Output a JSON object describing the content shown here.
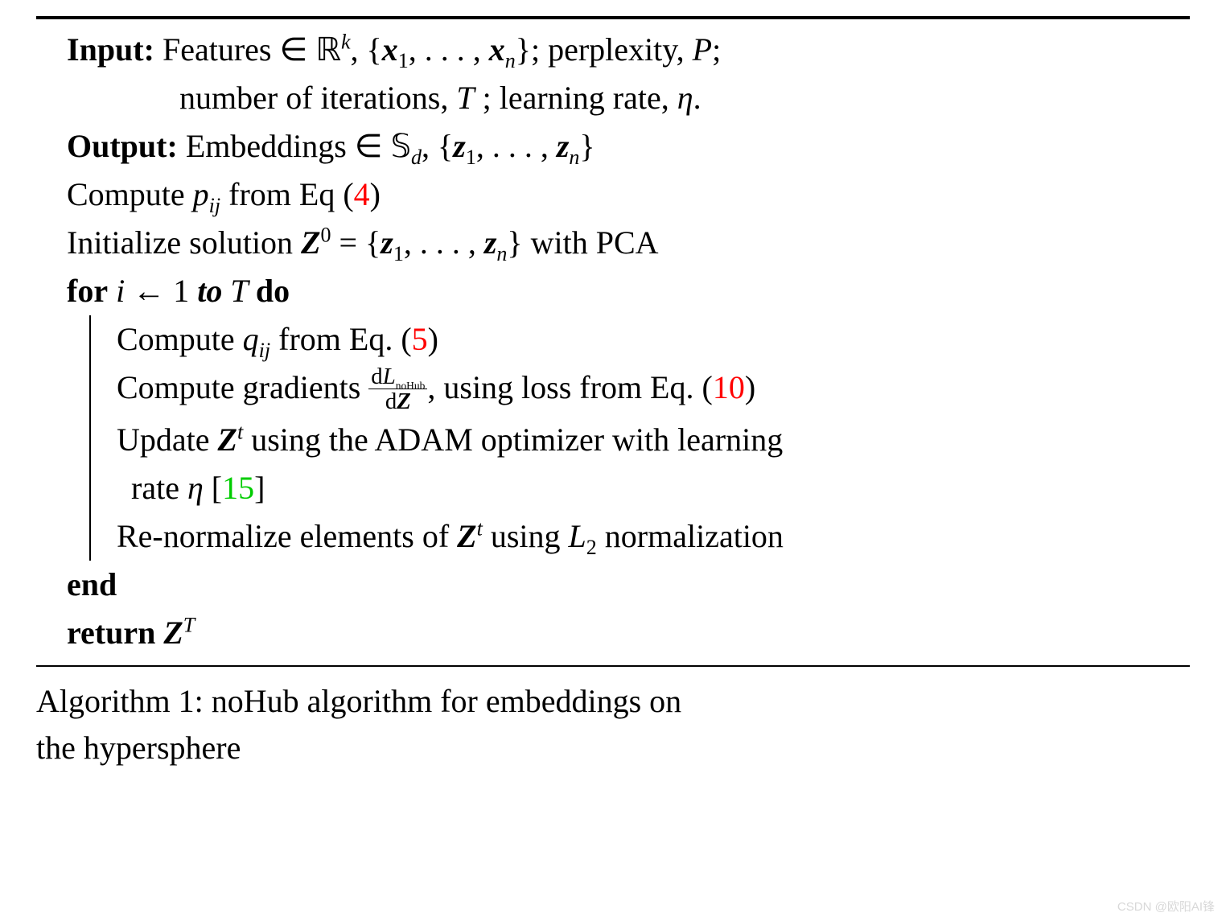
{
  "colors": {
    "ref_red": "#ff0000",
    "ref_green": "#00cc00",
    "text": "#000000",
    "bg": "#ffffff",
    "watermark": "#d8d8d8"
  },
  "typography": {
    "base_fontsize_pt": 30,
    "font_family": "Times New Roman"
  },
  "algo": {
    "input_label": "Input:",
    "input_line1_a": " Features ∈ ",
    "input_R": "ℝ",
    "input_Rexp": "k",
    "input_line1_b": ", {",
    "input_x1": "x",
    "input_sub1": "1",
    "input_dots": ", . . . , ",
    "input_xn": "x",
    "input_subn": "n",
    "input_line1_c": "}; perplexity, ",
    "input_P": "P",
    "input_semi": ";",
    "input_line2": "number of iterations, ",
    "input_T": "T",
    "input_line2b": " ; learning rate, ",
    "input_eta": "η",
    "input_dot": ".",
    "output_label": "Output:",
    "output_a": " Embeddings ∈ ",
    "output_S": "𝕊",
    "output_Ssub": "d",
    "output_b": ", {",
    "output_z1": "z",
    "output_sub1": "1",
    "output_dots": ", . . . , ",
    "output_zn": "z",
    "output_subn": "n",
    "output_c": "}",
    "l1_a": "Compute ",
    "l1_p": "p",
    "l1_sub": "ij",
    "l1_b": " from Eq (",
    "l1_ref": "4",
    "l1_c": ")",
    "l2_a": "Initialize solution ",
    "l2_Z": "Z",
    "l2_exp": "0",
    "l2_eq": " = {",
    "l2_z1": "z",
    "l2_sub1": "1",
    "l2_dots": ", . . . , ",
    "l2_zn": "z",
    "l2_subn": "n",
    "l2_b": "} with PCA",
    "for_kw": "for",
    "for_i": " i",
    "for_arrow": " ← 1 ",
    "for_to": "to",
    "for_T": " T ",
    "for_do": "do",
    "b1_a": "Compute ",
    "b1_q": "q",
    "b1_sub": "ij",
    "b1_b": " from Eq. (",
    "b1_ref": "5",
    "b1_c": ")",
    "b2_a": "Compute gradients ",
    "b2_num_d": "d",
    "b2_num_L": "L",
    "b2_num_sub": "noHub",
    "b2_den_d": "d",
    "b2_den_Z": "Z",
    "b2_b": ", using loss from Eq. (",
    "b2_ref": "10",
    "b2_c": ")",
    "b3_a": "Update ",
    "b3_Z": "Z",
    "b3_exp": "t",
    "b3_b": " using the ADAM optimizer with learning",
    "b3_c": " rate ",
    "b3_eta": "η",
    "b3_lb": " [",
    "b3_ref": "15",
    "b3_rb": "]",
    "b4_a": "Re-normalize elements of ",
    "b4_Z": "Z",
    "b4_exp": "t",
    "b4_b": " using ",
    "b4_L": "L",
    "b4_sub": "2",
    "b4_c": " normalization",
    "end_kw": "end",
    "ret_kw": "return ",
    "ret_Z": "Z",
    "ret_exp": "T"
  },
  "caption": {
    "label": "Algorithm 1: noHub algorithm for embeddings on",
    "line2": "the hypersphere"
  },
  "watermark": "CSDN @欧阳AI锋"
}
